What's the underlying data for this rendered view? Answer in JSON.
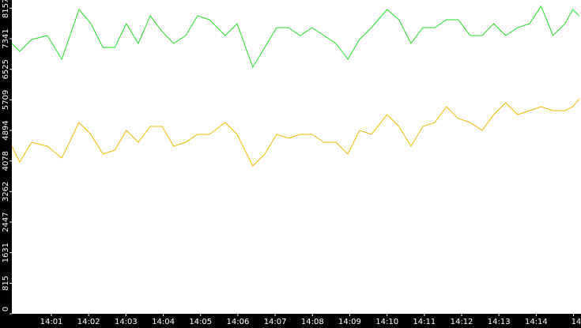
{
  "chart_data": {
    "type": "line",
    "x": [
      -0.06,
      0.15,
      0.47,
      0.89,
      1.28,
      1.74,
      2.06,
      2.38,
      2.7,
      3.01,
      3.33,
      3.65,
      3.97,
      4.28,
      4.6,
      4.92,
      5.24,
      5.66,
      5.98,
      6.4,
      6.72,
      7.04,
      7.36,
      7.67,
      7.99,
      8.31,
      8.63,
      8.95,
      9.26,
      9.58,
      10.0,
      10.32,
      10.64,
      10.96,
      11.28,
      11.59,
      11.91,
      12.23,
      12.55,
      12.86,
      13.18,
      13.5,
      13.82,
      14.13,
      14.45,
      14.77,
      14.98,
      15.15
    ],
    "series": [
      {
        "color": "#22dd22",
        "values": [
          7215,
          7004,
          7321,
          7426,
          6793,
          8122,
          7743,
          7110,
          7110,
          7743,
          7215,
          7954,
          7532,
          7215,
          7426,
          7954,
          7848,
          7426,
          7743,
          6582,
          7110,
          7637,
          7637,
          7426,
          7637,
          7426,
          7215,
          6793,
          7321,
          7637,
          8122,
          7848,
          7215,
          7637,
          7637,
          7848,
          7848,
          7426,
          7426,
          7743,
          7426,
          7637,
          7743,
          8207,
          7426,
          7743,
          8122,
          7954
        ]
      },
      {
        "color": "#f0b800",
        "values": [
          4473,
          4051,
          4578,
          4473,
          4156,
          5105,
          4789,
          4262,
          4367,
          4895,
          4578,
          5000,
          5000,
          4473,
          4578,
          4789,
          4789,
          5105,
          4789,
          3945,
          4262,
          4789,
          4684,
          4789,
          4789,
          4578,
          4578,
          4262,
          4895,
          4789,
          5316,
          5000,
          4473,
          5000,
          5105,
          5527,
          5211,
          5105,
          4895,
          5316,
          5633,
          5316,
          5422,
          5527,
          5422,
          5422,
          5527,
          5738
        ]
      }
    ],
    "xlim": [
      -0.06,
      15.2
    ],
    "xticks": [
      {
        "value": 1,
        "label": "14:01"
      },
      {
        "value": 2,
        "label": "14:02"
      },
      {
        "value": 3,
        "label": "14:03"
      },
      {
        "value": 4,
        "label": "14:04"
      },
      {
        "value": 5,
        "label": "14:05"
      },
      {
        "value": 6,
        "label": "14:06"
      },
      {
        "value": 7,
        "label": "14:07"
      },
      {
        "value": 8,
        "label": "14:08"
      },
      {
        "value": 9,
        "label": "14:09"
      },
      {
        "value": 10,
        "label": "14:10"
      },
      {
        "value": 11,
        "label": "14:11"
      },
      {
        "value": 12,
        "label": "14:12"
      },
      {
        "value": 13,
        "label": "14:13"
      },
      {
        "value": 14,
        "label": "14:14"
      },
      {
        "value": 15,
        "label": "14"
      }
    ],
    "ylim": [
      0,
      8375
    ],
    "yticks": [
      0,
      815,
      1631,
      2447,
      3262,
      4078,
      4894,
      5709,
      6525,
      7341,
      8157
    ]
  }
}
